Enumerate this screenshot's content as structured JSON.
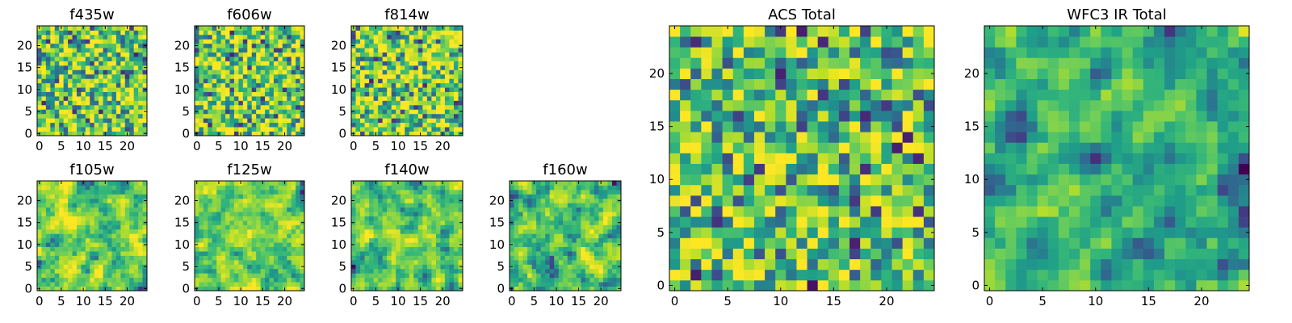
{
  "chart_data": [
    {
      "type": "heatmap",
      "title": "f435w",
      "xlim": [
        0,
        25
      ],
      "ylim": [
        0,
        25
      ],
      "xticks": [
        "0",
        "5",
        "10",
        "15",
        "20"
      ],
      "yticks": [
        "0",
        "5",
        "10",
        "15",
        "20"
      ],
      "grid_size": 25,
      "colormap": "viridis",
      "seed": 11,
      "smoothness": 0,
      "yellow_bias": 0.1
    },
    {
      "type": "heatmap",
      "title": "f606w",
      "xlim": [
        0,
        25
      ],
      "ylim": [
        0,
        25
      ],
      "xticks": [
        "0",
        "5",
        "10",
        "15",
        "20"
      ],
      "yticks": [
        "0",
        "5",
        "10",
        "15",
        "20"
      ],
      "grid_size": 25,
      "colormap": "viridis",
      "seed": 23,
      "smoothness": 0,
      "yellow_bias": 0.1
    },
    {
      "type": "heatmap",
      "title": "f814w",
      "xlim": [
        0,
        25
      ],
      "ylim": [
        0,
        25
      ],
      "xticks": [
        "0",
        "5",
        "10",
        "15",
        "20"
      ],
      "yticks": [
        "0",
        "5",
        "10",
        "15",
        "20"
      ],
      "grid_size": 25,
      "colormap": "viridis",
      "seed": 37,
      "smoothness": 0,
      "yellow_bias": 0.1
    },
    {
      "type": "heatmap",
      "title": "f105w",
      "xlim": [
        0,
        25
      ],
      "ylim": [
        0,
        25
      ],
      "xticks": [
        "0",
        "5",
        "10",
        "15",
        "20"
      ],
      "yticks": [
        "0",
        "5",
        "10",
        "15",
        "20"
      ],
      "grid_size": 25,
      "colormap": "viridis",
      "seed": 41,
      "smoothness": 1,
      "yellow_bias": 0.15
    },
    {
      "type": "heatmap",
      "title": "f125w",
      "xlim": [
        0,
        25
      ],
      "ylim": [
        0,
        25
      ],
      "xticks": [
        "0",
        "5",
        "10",
        "15",
        "20"
      ],
      "yticks": [
        "0",
        "5",
        "10",
        "15",
        "20"
      ],
      "grid_size": 25,
      "colormap": "viridis",
      "seed": 53,
      "smoothness": 1,
      "yellow_bias": 0.1
    },
    {
      "type": "heatmap",
      "title": "f140w",
      "xlim": [
        0,
        25
      ],
      "ylim": [
        0,
        25
      ],
      "xticks": [
        "0",
        "5",
        "10",
        "15",
        "20"
      ],
      "yticks": [
        "0",
        "5",
        "10",
        "15",
        "20"
      ],
      "grid_size": 25,
      "colormap": "viridis",
      "seed": 67,
      "smoothness": 1,
      "yellow_bias": 0.05
    },
    {
      "type": "heatmap",
      "title": "f160w",
      "xlim": [
        0,
        25
      ],
      "ylim": [
        0,
        25
      ],
      "xticks": [
        "0",
        "5",
        "10",
        "15",
        "20"
      ],
      "yticks": [
        "0",
        "5",
        "10",
        "15",
        "20"
      ],
      "grid_size": 25,
      "colormap": "viridis",
      "seed": 79,
      "smoothness": 1,
      "yellow_bias": 0.05
    },
    {
      "type": "heatmap",
      "title": "ACS Total",
      "xlim": [
        0,
        25
      ],
      "ylim": [
        0,
        25
      ],
      "xticks": [
        "0",
        "5",
        "10",
        "15",
        "20"
      ],
      "yticks": [
        "0",
        "5",
        "10",
        "15",
        "20"
      ],
      "grid_size": 25,
      "colormap": "viridis",
      "seed": 97,
      "smoothness": 0,
      "yellow_bias": 0.05
    },
    {
      "type": "heatmap",
      "title": "WFC3 IR Total",
      "xlim": [
        0,
        25
      ],
      "ylim": [
        0,
        25
      ],
      "xticks": [
        "0",
        "5",
        "10",
        "15",
        "20"
      ],
      "yticks": [
        "0",
        "5",
        "10",
        "15",
        "20"
      ],
      "grid_size": 25,
      "colormap": "viridis",
      "seed": 113,
      "smoothness": 1,
      "yellow_bias": -0.05
    }
  ]
}
